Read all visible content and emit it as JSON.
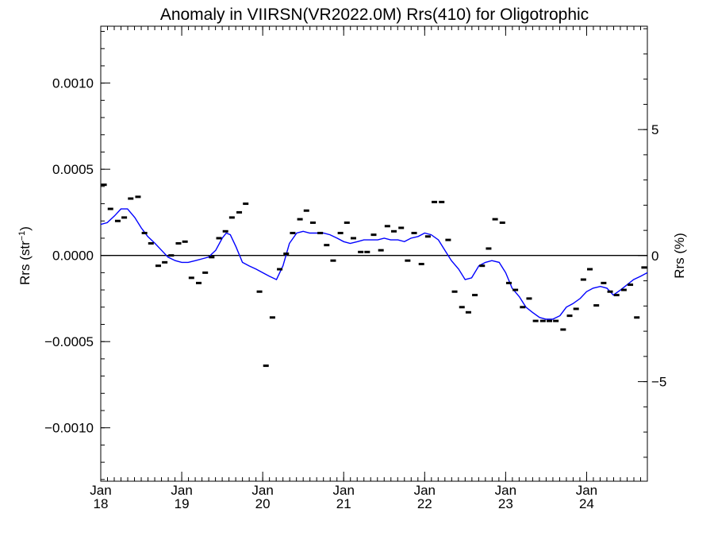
{
  "chart_data": {
    "type": "scatter",
    "title": "Anomaly in VIIRSN(VR2022.0M) Rrs(410) for Oligotrophic",
    "ylabel_left": {
      "base": "Rrs (str",
      "sup": "−1",
      "close": ")"
    },
    "ylabel_right": "Rrs (%)",
    "xlim": [
      2018.0,
      2024.75
    ],
    "ylim": [
      -0.00131,
      0.00133
    ],
    "y2lim": [
      -8.95,
      9.1
    ],
    "grid": false,
    "x_ticks": [
      {
        "value": 2018,
        "month": "Jan",
        "year": "18"
      },
      {
        "value": 2019,
        "month": "Jan",
        "year": "19"
      },
      {
        "value": 2020,
        "month": "Jan",
        "year": "20"
      },
      {
        "value": 2021,
        "month": "Jan",
        "year": "21"
      },
      {
        "value": 2022,
        "month": "Jan",
        "year": "22"
      },
      {
        "value": 2023,
        "month": "Jan",
        "year": "23"
      },
      {
        "value": 2024,
        "month": "Jan",
        "year": "24"
      }
    ],
    "y_ticks": [
      {
        "value": 0.001,
        "label": "0.0010"
      },
      {
        "value": 0.0005,
        "label": "0.0005"
      },
      {
        "value": 0.0,
        "label": "0.0000"
      },
      {
        "value": -0.0005,
        "label": "−0.0005"
      },
      {
        "value": -0.001,
        "label": "−0.0010"
      }
    ],
    "y2_ticks": [
      {
        "value": 5,
        "label": "5"
      },
      {
        "value": 0,
        "label": "0"
      },
      {
        "value": -5,
        "label": "−5"
      }
    ],
    "reference_line": 0.0,
    "series": [
      {
        "kind": "monthly_markers",
        "color": "#000000",
        "points": [
          [
            2018.04,
            0.00041
          ],
          [
            2018.12,
            0.00027
          ],
          [
            2018.21,
            0.0002
          ],
          [
            2018.29,
            0.00022
          ],
          [
            2018.37,
            0.00033
          ],
          [
            2018.46,
            0.00034
          ],
          [
            2018.54,
            0.00013
          ],
          [
            2018.62,
            7e-05
          ],
          [
            2018.71,
            -6e-05
          ],
          [
            2018.79,
            -4e-05
          ],
          [
            2018.87,
            0.0
          ],
          [
            2018.96,
            7e-05
          ],
          [
            2019.04,
            8e-05
          ],
          [
            2019.12,
            -0.00013
          ],
          [
            2019.21,
            -0.00016
          ],
          [
            2019.29,
            -0.0001
          ],
          [
            2019.37,
            -1e-05
          ],
          [
            2019.46,
            0.0001
          ],
          [
            2019.54,
            0.00014
          ],
          [
            2019.62,
            0.00022
          ],
          [
            2019.71,
            0.00025
          ],
          [
            2019.79,
            0.0003
          ],
          [
            2019.96,
            -0.00021
          ],
          [
            2020.04,
            -0.00064
          ],
          [
            2020.12,
            -0.00036
          ],
          [
            2020.21,
            -8e-05
          ],
          [
            2020.29,
            1e-05
          ],
          [
            2020.37,
            0.00013
          ],
          [
            2020.46,
            0.00021
          ],
          [
            2020.54,
            0.00026
          ],
          [
            2020.62,
            0.00019
          ],
          [
            2020.71,
            0.00013
          ],
          [
            2020.79,
            6e-05
          ],
          [
            2020.87,
            -3e-05
          ],
          [
            2020.96,
            0.00013
          ],
          [
            2021.04,
            0.00019
          ],
          [
            2021.12,
            0.0001
          ],
          [
            2021.21,
            2e-05
          ],
          [
            2021.29,
            2e-05
          ],
          [
            2021.37,
            0.00012
          ],
          [
            2021.46,
            3e-05
          ],
          [
            2021.54,
            0.00017
          ],
          [
            2021.62,
            0.00014
          ],
          [
            2021.71,
            0.00016
          ],
          [
            2021.79,
            -3e-05
          ],
          [
            2021.87,
            0.00013
          ],
          [
            2021.96,
            -5e-05
          ],
          [
            2022.04,
            0.00011
          ],
          [
            2022.12,
            0.00031
          ],
          [
            2022.21,
            0.00031
          ],
          [
            2022.29,
            9e-05
          ],
          [
            2022.37,
            -0.00021
          ],
          [
            2022.46,
            -0.0003
          ],
          [
            2022.54,
            -0.00033
          ],
          [
            2022.62,
            -0.00023
          ],
          [
            2022.71,
            -6e-05
          ],
          [
            2022.79,
            4e-05
          ],
          [
            2022.87,
            0.00021
          ],
          [
            2022.96,
            0.00019
          ],
          [
            2023.04,
            -0.00016
          ],
          [
            2023.12,
            -0.0002
          ],
          [
            2023.21,
            -0.0003
          ],
          [
            2023.29,
            -0.00025
          ],
          [
            2023.37,
            -0.00038
          ],
          [
            2023.46,
            -0.00038
          ],
          [
            2023.54,
            -0.00038
          ],
          [
            2023.62,
            -0.00038
          ],
          [
            2023.71,
            -0.00043
          ],
          [
            2023.79,
            -0.00035
          ],
          [
            2023.87,
            -0.00031
          ],
          [
            2023.96,
            -0.00014
          ],
          [
            2024.04,
            -8e-05
          ],
          [
            2024.12,
            -0.00029
          ],
          [
            2024.21,
            -0.00016
          ],
          [
            2024.29,
            -0.00021
          ],
          [
            2024.37,
            -0.00023
          ],
          [
            2024.46,
            -0.0002
          ],
          [
            2024.54,
            -0.00017
          ],
          [
            2024.62,
            -0.00036
          ],
          [
            2024.71,
            -7e-05
          ]
        ]
      },
      {
        "kind": "running_mean_line",
        "color": "#0000ff",
        "points": [
          [
            2018.0,
            0.00018
          ],
          [
            2018.08,
            0.00019
          ],
          [
            2018.17,
            0.00023
          ],
          [
            2018.25,
            0.00027
          ],
          [
            2018.33,
            0.00027
          ],
          [
            2018.42,
            0.00022
          ],
          [
            2018.5,
            0.00016
          ],
          [
            2018.58,
            0.00011
          ],
          [
            2018.67,
            7e-05
          ],
          [
            2018.75,
            3e-05
          ],
          [
            2018.83,
            -1e-05
          ],
          [
            2018.92,
            -3e-05
          ],
          [
            2019.0,
            -4e-05
          ],
          [
            2019.08,
            -4e-05
          ],
          [
            2019.17,
            -3e-05
          ],
          [
            2019.25,
            -2e-05
          ],
          [
            2019.33,
            -1e-05
          ],
          [
            2019.42,
            3e-05
          ],
          [
            2019.5,
            0.0001
          ],
          [
            2019.55,
            0.00013
          ],
          [
            2019.6,
            0.00012
          ],
          [
            2019.67,
            5e-05
          ],
          [
            2019.75,
            -4e-05
          ],
          [
            2019.83,
            -6e-05
          ],
          [
            2019.92,
            -8e-05
          ],
          [
            2020.0,
            -0.0001
          ],
          [
            2020.08,
            -0.00012
          ],
          [
            2020.17,
            -0.00014
          ],
          [
            2020.25,
            -6e-05
          ],
          [
            2020.33,
            7e-05
          ],
          [
            2020.42,
            0.00013
          ],
          [
            2020.5,
            0.00014
          ],
          [
            2020.58,
            0.00013
          ],
          [
            2020.67,
            0.00013
          ],
          [
            2020.75,
            0.00013
          ],
          [
            2020.83,
            0.00012
          ],
          [
            2020.92,
            0.0001
          ],
          [
            2021.0,
            8e-05
          ],
          [
            2021.08,
            7e-05
          ],
          [
            2021.17,
            8e-05
          ],
          [
            2021.25,
            9e-05
          ],
          [
            2021.33,
            9e-05
          ],
          [
            2021.42,
            9e-05
          ],
          [
            2021.5,
            0.0001
          ],
          [
            2021.58,
            9e-05
          ],
          [
            2021.67,
            9e-05
          ],
          [
            2021.75,
            8e-05
          ],
          [
            2021.83,
            0.0001
          ],
          [
            2021.92,
            0.00011
          ],
          [
            2022.0,
            0.00013
          ],
          [
            2022.08,
            0.00012
          ],
          [
            2022.17,
            9e-05
          ],
          [
            2022.25,
            3e-05
          ],
          [
            2022.33,
            -3e-05
          ],
          [
            2022.42,
            -8e-05
          ],
          [
            2022.5,
            -0.00014
          ],
          [
            2022.58,
            -0.00013
          ],
          [
            2022.67,
            -6e-05
          ],
          [
            2022.75,
            -4e-05
          ],
          [
            2022.83,
            -3e-05
          ],
          [
            2022.92,
            -4e-05
          ],
          [
            2023.0,
            -0.0001
          ],
          [
            2023.08,
            -0.00019
          ],
          [
            2023.17,
            -0.00024
          ],
          [
            2023.25,
            -0.0003
          ],
          [
            2023.33,
            -0.00033
          ],
          [
            2023.42,
            -0.00036
          ],
          [
            2023.5,
            -0.00037
          ],
          [
            2023.58,
            -0.00037
          ],
          [
            2023.67,
            -0.00035
          ],
          [
            2023.75,
            -0.0003
          ],
          [
            2023.83,
            -0.00028
          ],
          [
            2023.92,
            -0.00025
          ],
          [
            2024.0,
            -0.00021
          ],
          [
            2024.08,
            -0.00019
          ],
          [
            2024.17,
            -0.00018
          ],
          [
            2024.25,
            -0.00019
          ],
          [
            2024.33,
            -0.00023
          ],
          [
            2024.42,
            -0.0002
          ],
          [
            2024.5,
            -0.00017
          ],
          [
            2024.58,
            -0.00014
          ],
          [
            2024.67,
            -0.00012
          ],
          [
            2024.75,
            -0.0001
          ]
        ]
      }
    ]
  }
}
